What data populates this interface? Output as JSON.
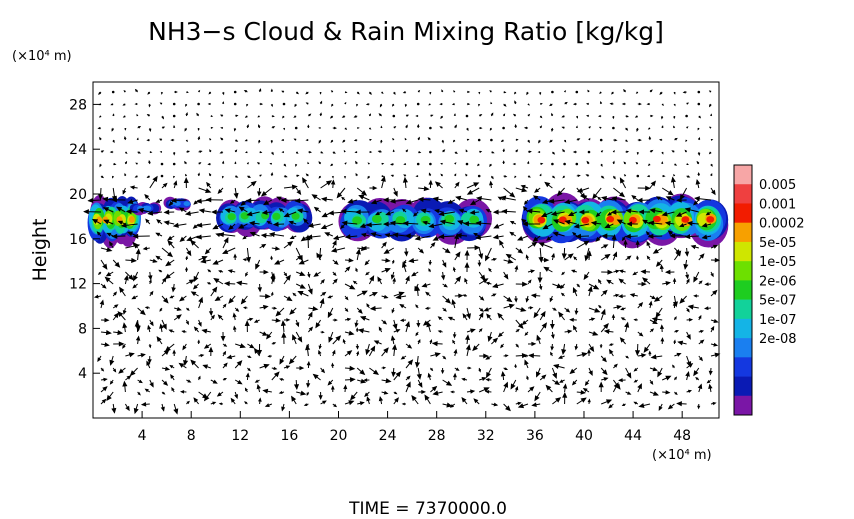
{
  "title": "NH3−s Cloud & Rain Mixing Ratio [kg/kg]",
  "footer": "TIME  =  7370000.0",
  "chart_data": {
    "type": "heatmap",
    "title": "NH3−s Cloud & Rain Mixing Ratio [kg/kg]",
    "ylabel": "Height",
    "y_unit_label": "(×10⁴ m)",
    "x_unit_label": "(×10⁴ m)",
    "xlim": [
      0,
      51
    ],
    "ylim": [
      0,
      30
    ],
    "x_ticks": [
      4,
      8,
      12,
      16,
      20,
      24,
      28,
      32,
      36,
      40,
      44,
      48
    ],
    "y_ticks": [
      4,
      8,
      12,
      16,
      20,
      24,
      28
    ],
    "colorbar": {
      "labels": [
        "0.005",
        "0.001",
        "0.0002",
        "5e-05",
        "1e-05",
        "2e-06",
        "5e-07",
        "1e-07",
        "2e-08"
      ],
      "colors": [
        "#f7a6a6",
        "#ef4040",
        "#f21c00",
        "#f7a000",
        "#cfe600",
        "#6de000",
        "#1ecd20",
        "#12d29a",
        "#14b4e6",
        "#1a7ff0",
        "#1438e0",
        "#0a1ab4",
        "#7a16a6"
      ]
    },
    "cloud_regions": [
      {
        "x0": 0,
        "x1": 3.5,
        "y0": 15.8,
        "y1": 19.6,
        "peak_level": 9
      },
      {
        "x0": 3.5,
        "x1": 5,
        "y0": 18.3,
        "y1": 19.2,
        "peak_level": 3
      },
      {
        "x0": 6.3,
        "x1": 7.8,
        "y0": 18.7,
        "y1": 19.6,
        "peak_level": 3
      },
      {
        "x0": 10.5,
        "x1": 17.2,
        "y0": 16.6,
        "y1": 19.4,
        "peak_level": 6
      },
      {
        "x0": 20.5,
        "x1": 31.8,
        "y0": 16.0,
        "y1": 19.4,
        "peak_level": 6
      },
      {
        "x0": 35.5,
        "x1": 51,
        "y0": 15.8,
        "y1": 19.6,
        "peak_level": 10
      }
    ],
    "wind_field": "vector arrows, dense jets near 16–19 (×10⁴ m), downdrafts near x≈38–48"
  }
}
